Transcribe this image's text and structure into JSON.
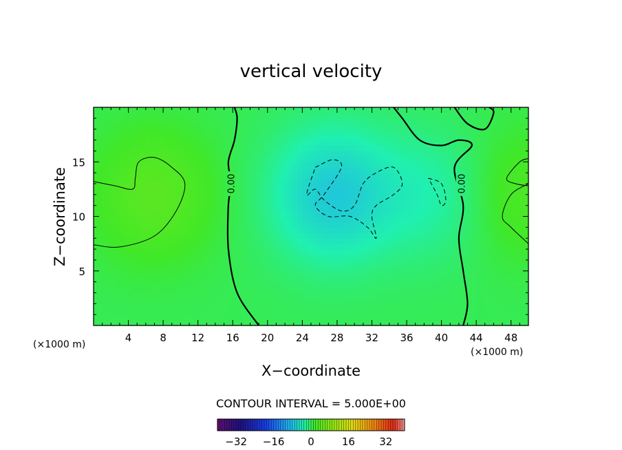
{
  "chart_data": {
    "type": "heatmap",
    "title": "vertical velocity",
    "xlabel": "X−coordinate",
    "ylabel": "Z−coordinate",
    "x_unit_left": "(×1000 m)",
    "x_unit_right": "(×1000 m)",
    "xlim": [
      0,
      50
    ],
    "ylim": [
      0,
      20
    ],
    "x_ticks": [
      4,
      8,
      12,
      16,
      20,
      24,
      28,
      32,
      36,
      40,
      44,
      48
    ],
    "y_ticks": [
      5,
      10,
      15
    ],
    "contour_interval_text": "CONTOUR INTERVAL = 5.000E+00",
    "contour_interval": 5.0,
    "zero_contour_label": "0.00",
    "colorbar": {
      "range": [
        -40,
        40
      ],
      "tick_values": [
        -32,
        -16,
        0,
        16,
        32
      ],
      "tick_labels": [
        "−32",
        "−16",
        "0",
        "16",
        "32"
      ]
    },
    "field_features": [
      {
        "x": 7,
        "z": 12,
        "value": 4,
        "sign": "positive"
      },
      {
        "x": 27.5,
        "z": 12,
        "value": -7,
        "sign": "negative"
      },
      {
        "x": 39.5,
        "z": 12,
        "value": -3,
        "sign": "negative"
      },
      {
        "x": 49,
        "z": 12,
        "value": 3,
        "sign": "positive"
      }
    ],
    "zero_contours": [
      {
        "name": "zero-contour-left",
        "points": [
          [
            19,
            0
          ],
          [
            16.5,
            3
          ],
          [
            15.5,
            7
          ],
          [
            15.5,
            11
          ],
          [
            15.8,
            13
          ],
          [
            15.5,
            15
          ],
          [
            16.2,
            17
          ],
          [
            16.5,
            19
          ],
          [
            16.2,
            20
          ]
        ]
      },
      {
        "name": "zero-contour-right",
        "points": [
          [
            42.5,
            0
          ],
          [
            43,
            2
          ],
          [
            42.5,
            5
          ],
          [
            42,
            8
          ],
          [
            42.5,
            11
          ],
          [
            41.5,
            14.5
          ],
          [
            43.5,
            16.5
          ],
          [
            42,
            17
          ],
          [
            40,
            16.5
          ],
          [
            37.5,
            17
          ],
          [
            35.5,
            19
          ],
          [
            34.5,
            20
          ]
        ]
      },
      {
        "name": "zero-contour-topright",
        "points": [
          [
            41.5,
            20
          ],
          [
            43,
            18.5
          ],
          [
            45,
            18
          ],
          [
            46,
            19.5
          ],
          [
            45.5,
            20
          ]
        ]
      }
    ],
    "positive_contours": [
      {
        "name": "contour-plus5-left",
        "points": [
          [
            0,
            13.2
          ],
          [
            2.5,
            12.8
          ],
          [
            4.5,
            12.5
          ],
          [
            4.8,
            13.5
          ],
          [
            5.2,
            15
          ],
          [
            7,
            15.4
          ],
          [
            9,
            14.5
          ],
          [
            10.5,
            13
          ],
          [
            9.5,
            10.5
          ],
          [
            7,
            8.2
          ],
          [
            3,
            7.2
          ],
          [
            0,
            7.4
          ]
        ]
      },
      {
        "name": "contour-plus5-right",
        "points": [
          [
            50,
            7.5
          ],
          [
            48,
            9
          ],
          [
            47,
            10
          ],
          [
            48,
            12
          ],
          [
            50,
            13
          ]
        ]
      },
      {
        "name": "contour-plus5-right-inner",
        "points": [
          [
            50,
            12.8
          ],
          [
            48.5,
            13
          ],
          [
            47.5,
            13.5
          ],
          [
            49,
            15
          ],
          [
            50,
            15.3
          ]
        ]
      }
    ],
    "negative_contours": [
      {
        "name": "contour-minus5-center",
        "points": [
          [
            25.5,
            14.5
          ],
          [
            27.5,
            15.2
          ],
          [
            28.5,
            14.5
          ],
          [
            26.5,
            12
          ],
          [
            25.5,
            11
          ],
          [
            27,
            10
          ],
          [
            29.5,
            10
          ],
          [
            31.5,
            9
          ],
          [
            32.5,
            8
          ],
          [
            32,
            10
          ],
          [
            32.5,
            11
          ],
          [
            34.5,
            12
          ],
          [
            35.5,
            13
          ],
          [
            34.5,
            14.5
          ],
          [
            32.5,
            14
          ],
          [
            31,
            13
          ],
          [
            30,
            11
          ],
          [
            28.5,
            10.5
          ],
          [
            26.5,
            11.5
          ],
          [
            25.5,
            12.5
          ],
          [
            24.5,
            12
          ],
          [
            25.5,
            14.5
          ]
        ]
      },
      {
        "name": "contour-minus5-right",
        "points": [
          [
            38.5,
            13.5
          ],
          [
            40,
            13
          ],
          [
            40.5,
            11.5
          ],
          [
            40,
            11
          ],
          [
            39.5,
            12
          ],
          [
            38.5,
            13.5
          ]
        ]
      }
    ]
  }
}
